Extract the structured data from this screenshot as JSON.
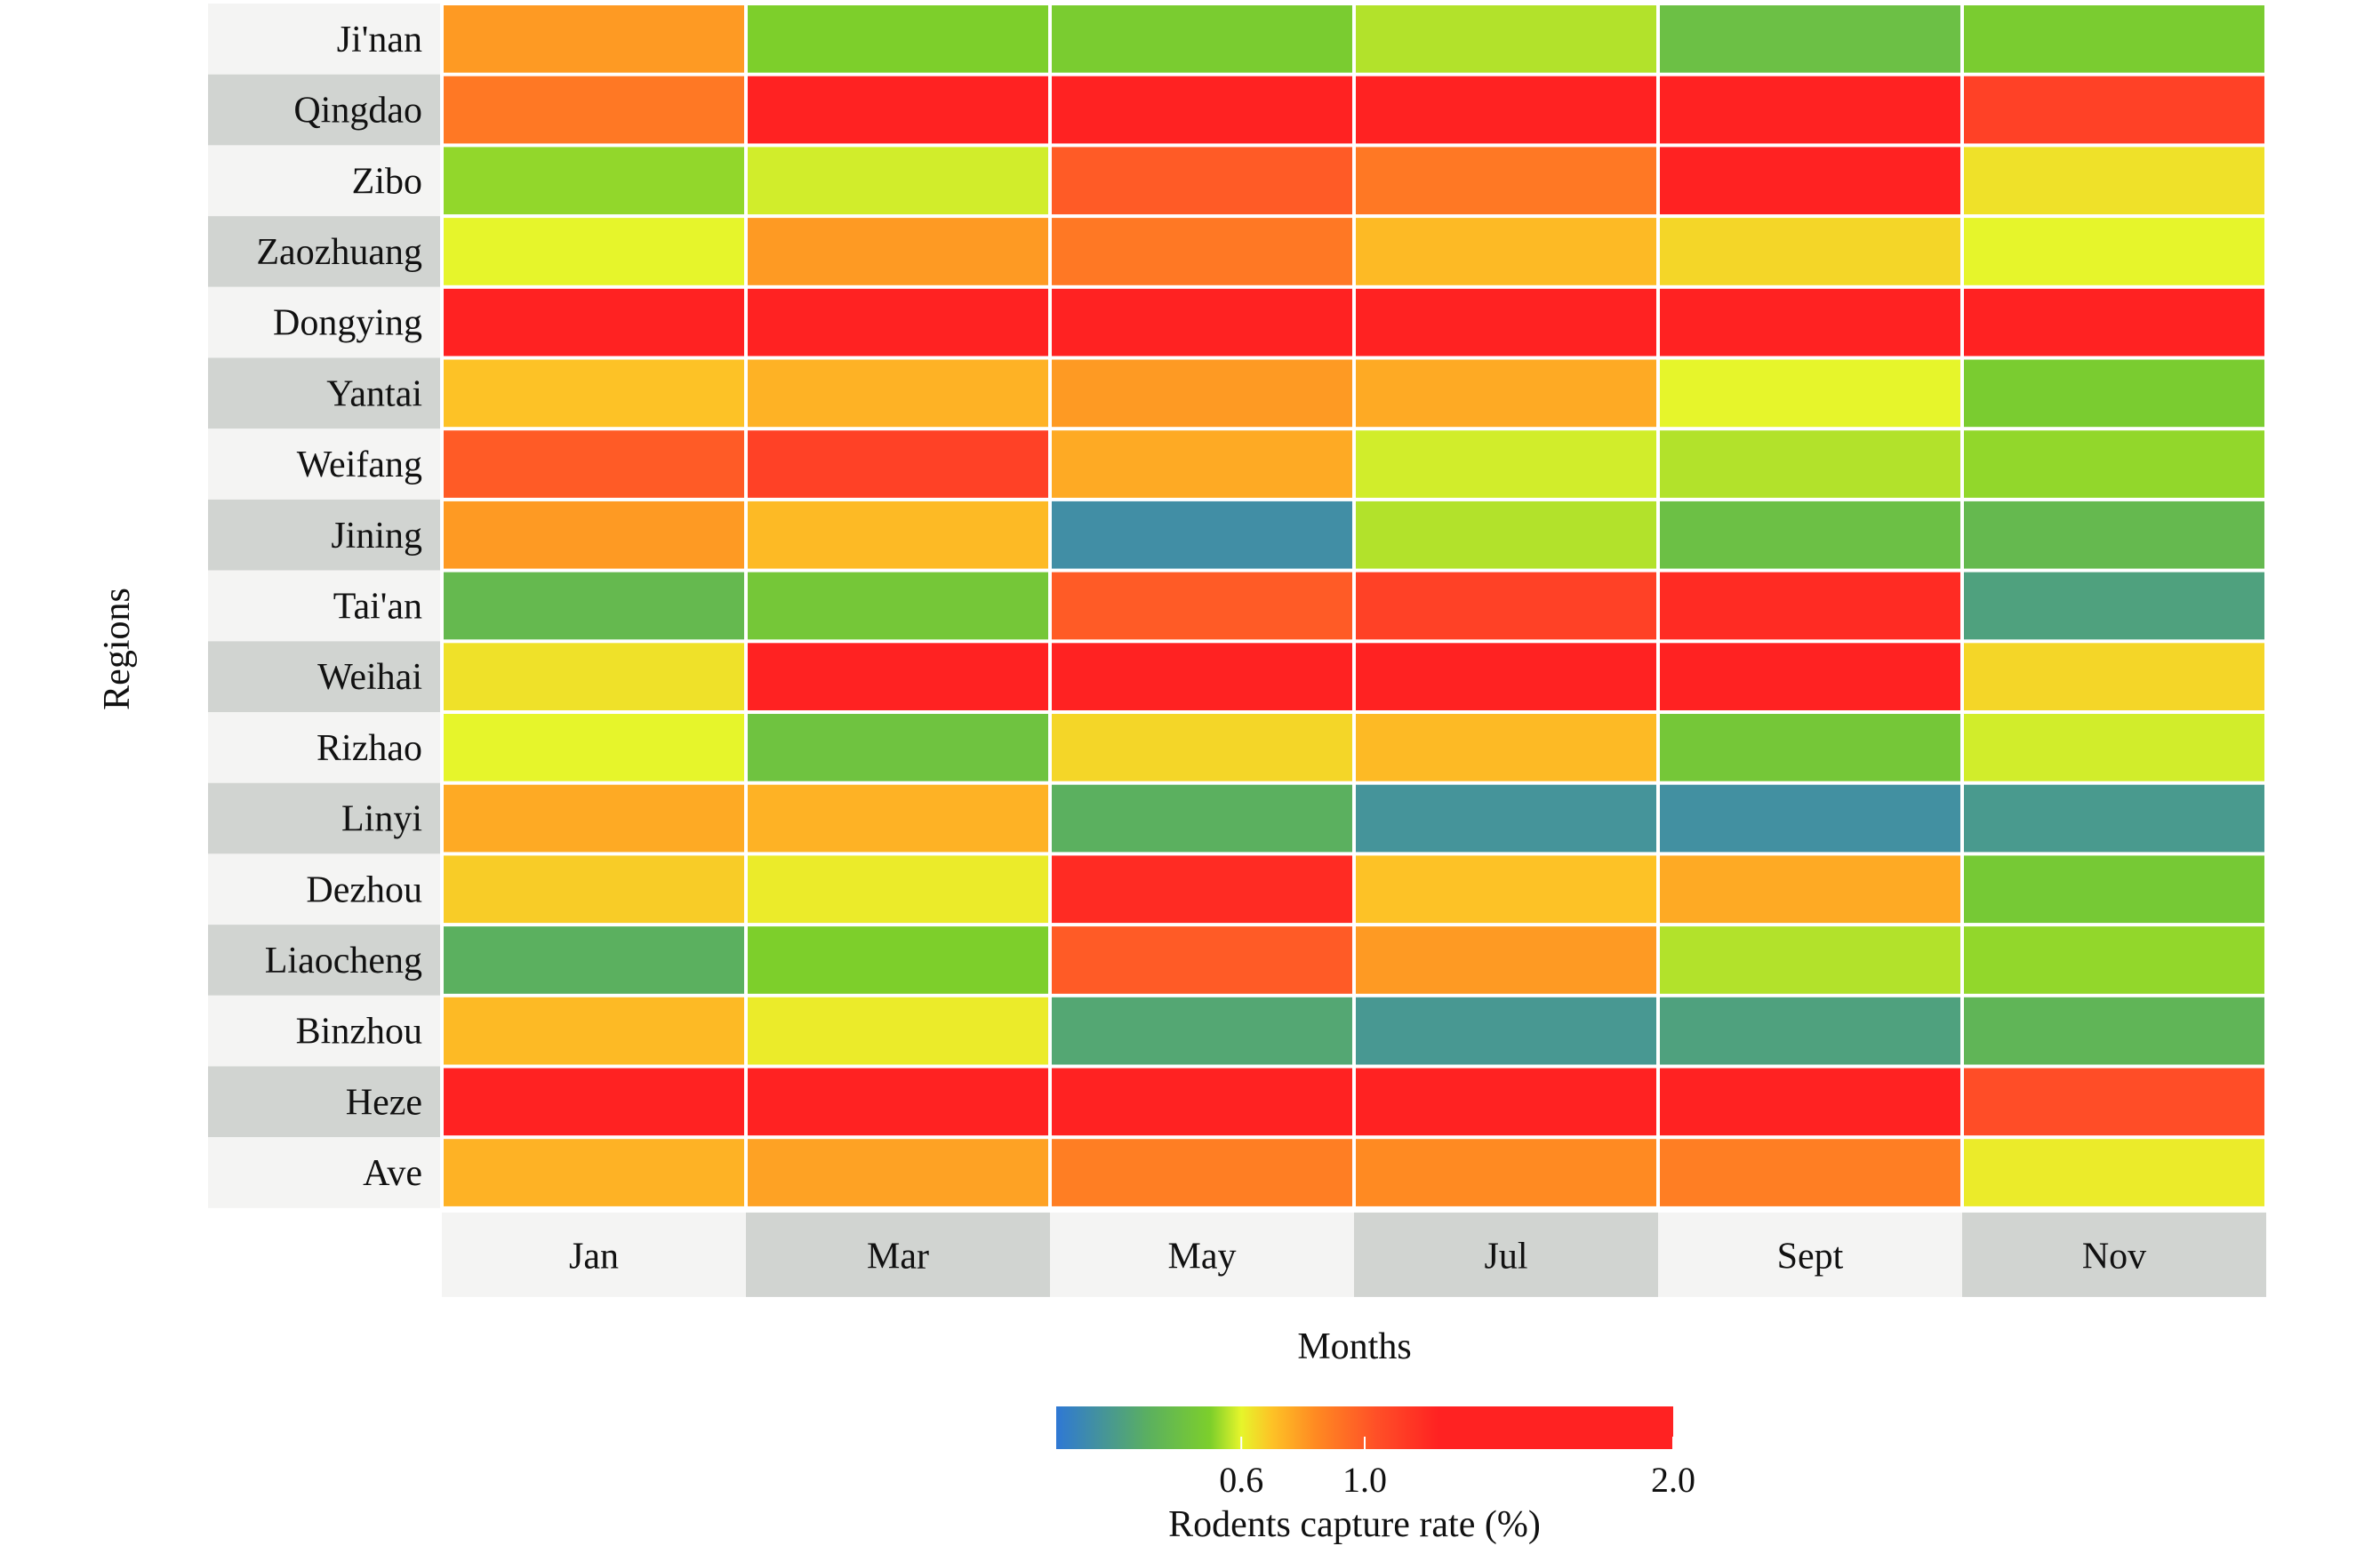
{
  "chart_data": {
    "type": "heatmap",
    "title": "",
    "xlabel": "Months",
    "ylabel": "Regions",
    "x_categories": [
      "Jan",
      "Mar",
      "May",
      "Jul",
      "Sept",
      "Nov"
    ],
    "y_categories": [
      "Ji'nan",
      "Qingdao",
      "Zibo",
      "Zaozhuang",
      "Dongying",
      "Yantai",
      "Weifang",
      "Jining",
      "Tai'an",
      "Weihai",
      "Rizhao",
      "Linyi",
      "Dezhou",
      "Liaocheng",
      "Binzhou",
      "Heze",
      "Ave"
    ],
    "values": [
      [
        0.8,
        0.5,
        0.48,
        0.55,
        0.4,
        0.48
      ],
      [
        0.9,
        1.5,
        1.8,
        1.3,
        1.5,
        1.1
      ],
      [
        0.52,
        0.58,
        1.0,
        0.9,
        1.6,
        0.64
      ],
      [
        0.6,
        0.8,
        0.9,
        0.72,
        0.66,
        0.6
      ],
      [
        1.8,
        1.8,
        1.8,
        1.8,
        1.8,
        1.8
      ],
      [
        0.7,
        0.74,
        0.8,
        0.76,
        0.6,
        0.48
      ],
      [
        1.0,
        1.1,
        0.76,
        0.58,
        0.55,
        0.52
      ],
      [
        0.8,
        0.72,
        0.12,
        0.55,
        0.4,
        0.36
      ],
      [
        0.36,
        0.45,
        1.0,
        1.1,
        1.2,
        0.22
      ],
      [
        0.64,
        1.6,
        1.6,
        1.6,
        1.6,
        0.66
      ],
      [
        0.6,
        0.42,
        0.66,
        0.72,
        0.45,
        0.58
      ],
      [
        0.76,
        0.74,
        0.3,
        0.15,
        0.13,
        0.18
      ],
      [
        0.68,
        0.62,
        1.2,
        0.7,
        0.76,
        0.46
      ],
      [
        0.3,
        0.5,
        1.0,
        0.8,
        0.55,
        0.52
      ],
      [
        0.72,
        0.62,
        0.25,
        0.17,
        0.22,
        0.33
      ],
      [
        1.5,
        1.5,
        1.4,
        1.4,
        1.5,
        1.05
      ],
      [
        0.74,
        0.78,
        0.88,
        0.84,
        0.88,
        0.62
      ]
    ],
    "legend": {
      "title": "Rodents capture rate (%)",
      "min": 0.0,
      "max": 2.0,
      "ticks": [
        0.6,
        1.0,
        2.0
      ],
      "tick_labels": [
        "0.6",
        "1.0",
        "2.0"
      ],
      "colors": [
        "#2f78d4",
        "#5bb05f",
        "#7dcf2b",
        "#e6f52b",
        "#fdc226",
        "#ff8a22",
        "#ff4f27",
        "#ff2222"
      ],
      "stops": [
        0.0,
        0.15,
        0.25,
        0.3,
        0.35,
        0.42,
        0.52,
        0.62
      ]
    },
    "colors": {
      "label_bg_light": "#f4f4f3",
      "label_bg_dark": "#d1d4d1",
      "cell_border": "#ffffff"
    }
  }
}
